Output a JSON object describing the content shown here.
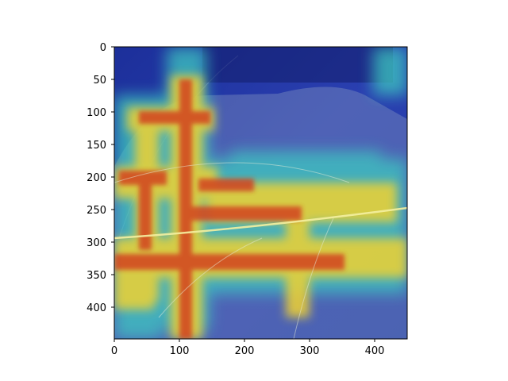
{
  "figure": {
    "image_description_icon": "leaf-gradcam-heatmap",
    "x_axis": {
      "ticks": [
        "0",
        "100",
        "200",
        "300",
        "400"
      ],
      "range": [
        0,
        449
      ]
    },
    "y_axis": {
      "ticks": [
        "0",
        "50",
        "100",
        "150",
        "200",
        "250",
        "300",
        "350",
        "400"
      ],
      "range": [
        0,
        449
      ]
    },
    "colormap": "jet",
    "colors": {
      "background_dark": "#1a2a8a",
      "hot": "#d2321e",
      "warm": "#f0c828",
      "mid": "#3cc8b4",
      "cool": "#2850c8"
    }
  }
}
